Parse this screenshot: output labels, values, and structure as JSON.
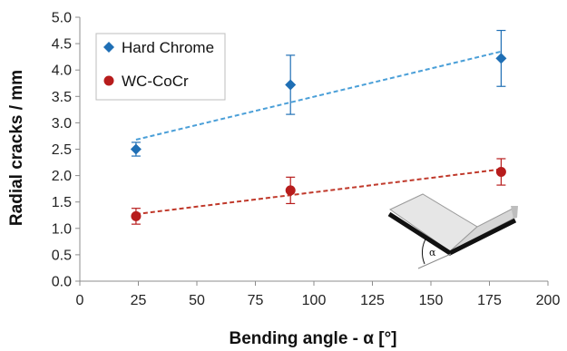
{
  "chart_data": {
    "type": "scatter",
    "xlabel": "Bending angle - α [°]",
    "ylabel": "Radial cracks / mm",
    "xlim": [
      0,
      200
    ],
    "ylim": [
      0.0,
      5.0
    ],
    "x_ticks": [
      "0",
      "25",
      "50",
      "75",
      "100",
      "125",
      "150",
      "175",
      "200"
    ],
    "y_ticks": [
      "0.0",
      "0.5",
      "1.0",
      "1.5",
      "2.0",
      "2.5",
      "3.0",
      "3.5",
      "4.0",
      "4.5",
      "5.0"
    ],
    "grid": false,
    "legend_position": "top-left",
    "series": [
      {
        "name": "Hard Chrome",
        "marker": "diamond",
        "color": "#1f6fb5",
        "trend_color": "#4a9fd8",
        "x": [
          24,
          90,
          180
        ],
        "y": [
          2.5,
          3.72,
          4.22
        ],
        "err": [
          0.13,
          0.56,
          0.53
        ],
        "trendline": {
          "type": "linear",
          "x": [
            24,
            180
          ],
          "y": [
            2.68,
            4.35
          ]
        }
      },
      {
        "name": "WC-CoCr",
        "marker": "circle",
        "color": "#b71c1c",
        "trend_color": "#c0392b",
        "x": [
          24,
          90,
          180
        ],
        "y": [
          1.23,
          1.72,
          2.07
        ],
        "err": [
          0.15,
          0.25,
          0.25
        ],
        "trendline": {
          "type": "linear",
          "x": [
            24,
            180
          ],
          "y": [
            1.27,
            2.12
          ]
        }
      }
    ],
    "inset_symbol": "α"
  }
}
